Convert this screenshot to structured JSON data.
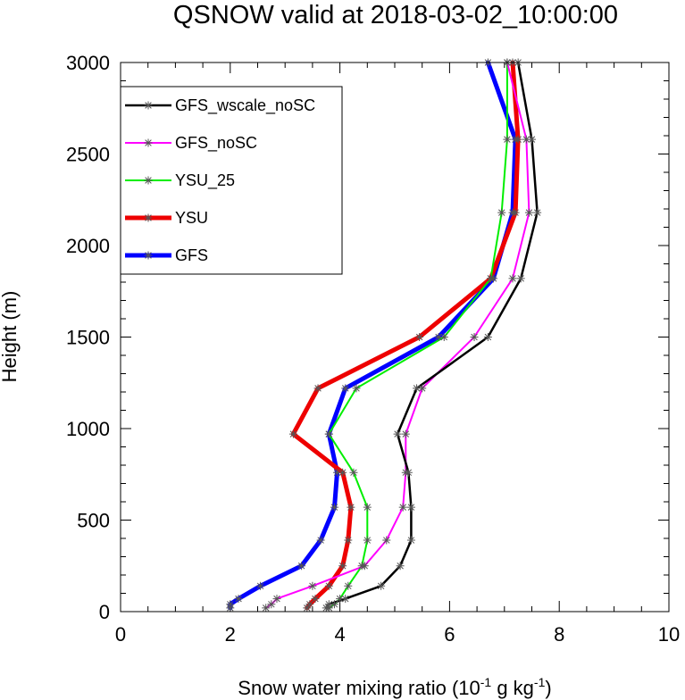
{
  "chart_data": {
    "type": "line",
    "title": "QSNOW valid at 2018-03-02_10:00:00",
    "xlabel": {
      "prefix": "Snow water mixing ratio (10",
      "sup1": "-1",
      "mid": " g kg",
      "sup2": "-1",
      "suffix": ")"
    },
    "ylabel": "Height (m)",
    "xlim": [
      0,
      10
    ],
    "ylim": [
      0,
      3000
    ],
    "xticks": [
      0,
      2,
      4,
      6,
      8,
      10
    ],
    "yticks": [
      0,
      500,
      1000,
      1500,
      2000,
      2500,
      3000
    ],
    "grid": false,
    "legend_position": "top-left",
    "heights": [
      20,
      40,
      70,
      140,
      250,
      390,
      570,
      760,
      970,
      1220,
      1500,
      1820,
      2180,
      2580,
      3000
    ],
    "series": [
      {
        "name": "GFS_wscale_noSC",
        "color": "#000000",
        "width": 2.5,
        "values": [
          3.75,
          3.8,
          4.1,
          4.75,
          5.1,
          5.3,
          5.3,
          5.25,
          5.05,
          5.4,
          6.7,
          7.3,
          7.6,
          7.5,
          7.25
        ]
      },
      {
        "name": "GFS_noSC",
        "color": "#ff00ff",
        "width": 2,
        "values": [
          2.65,
          2.75,
          2.85,
          3.5,
          4.45,
          4.85,
          5.15,
          5.2,
          5.2,
          5.5,
          6.45,
          7.15,
          7.45,
          7.4,
          7.05
        ]
      },
      {
        "name": "YSU_25",
        "color": "#00ee00",
        "width": 2,
        "values": [
          3.8,
          3.9,
          4.0,
          4.15,
          4.4,
          4.5,
          4.5,
          4.25,
          3.8,
          4.3,
          5.9,
          6.75,
          6.95,
          7.05,
          7.05
        ]
      },
      {
        "name": "YSU",
        "color": "#ee0000",
        "width": 5,
        "values": [
          3.4,
          3.45,
          3.55,
          3.8,
          4.05,
          4.15,
          4.2,
          4.05,
          3.15,
          3.6,
          5.45,
          6.75,
          7.2,
          7.25,
          7.15
        ]
      },
      {
        "name": "GFS",
        "color": "#0000ff",
        "width": 5,
        "values": [
          2.0,
          2.0,
          2.15,
          2.55,
          3.3,
          3.65,
          3.9,
          3.95,
          3.8,
          4.1,
          5.8,
          6.8,
          7.15,
          7.2,
          6.7
        ]
      }
    ]
  }
}
